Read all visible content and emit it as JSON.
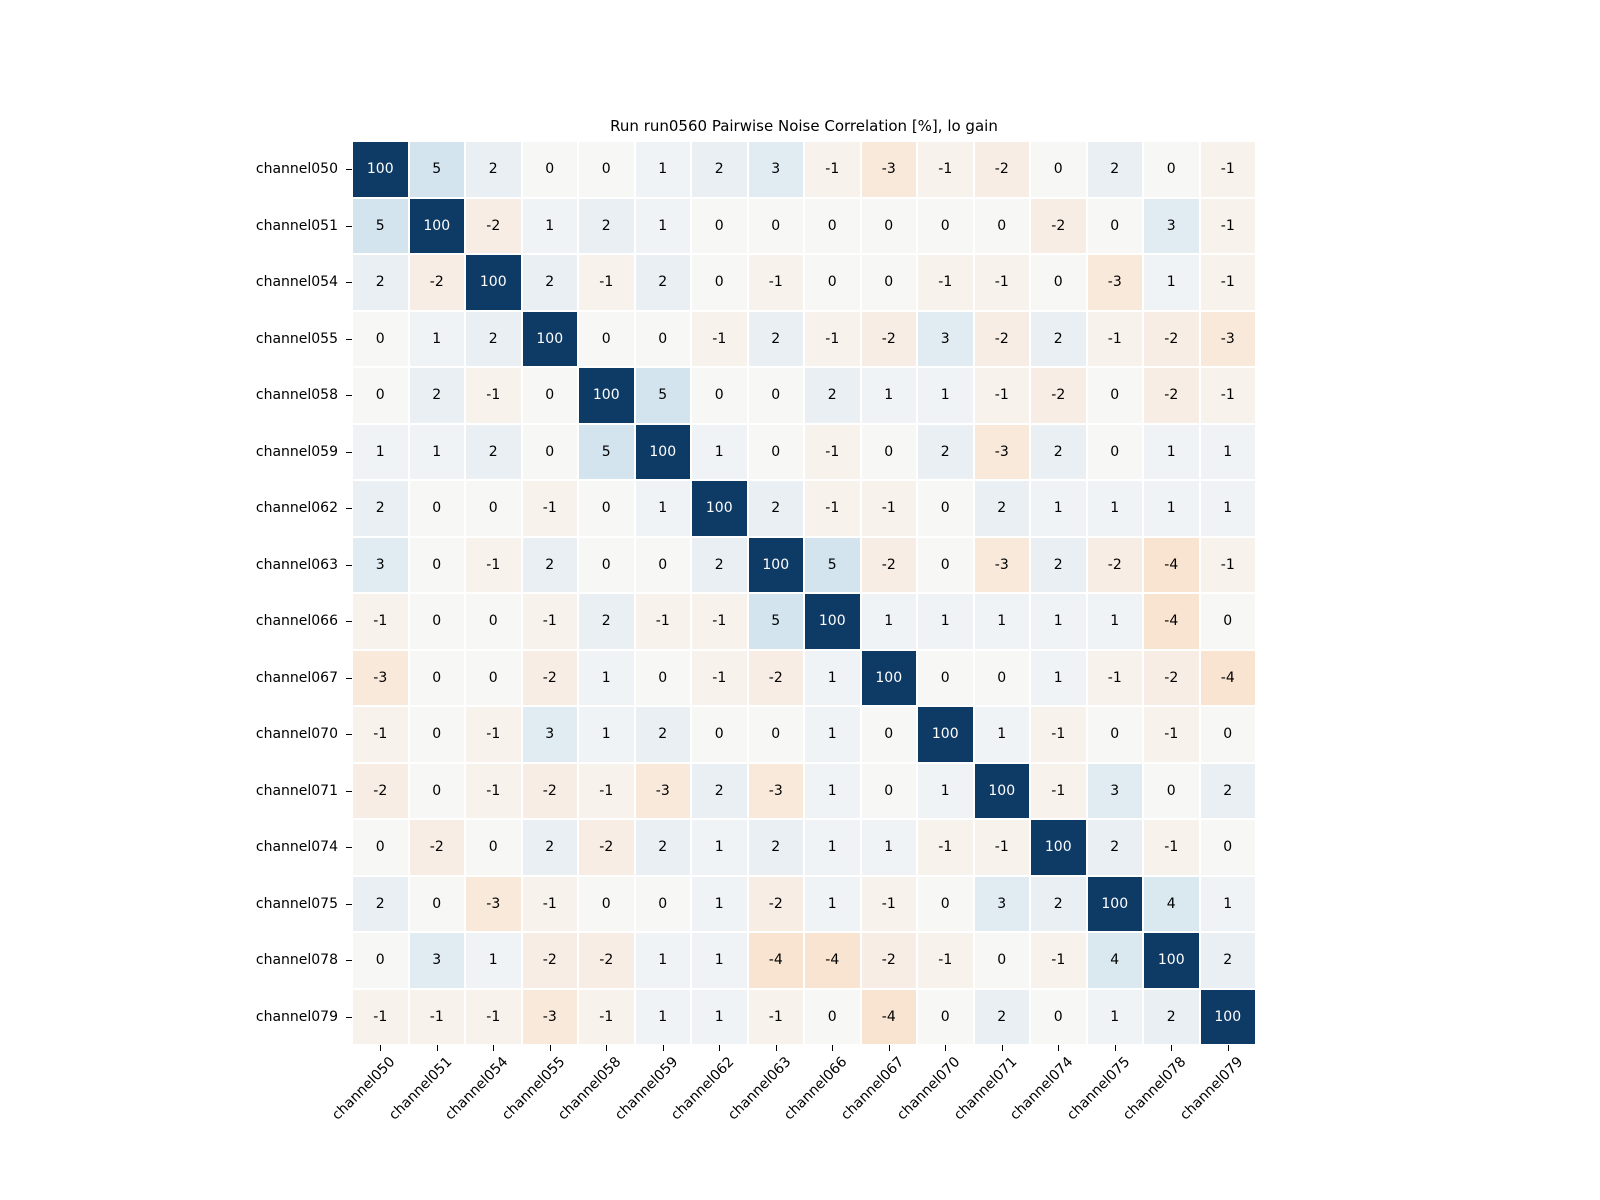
{
  "title": "Run run0560 Pairwise Noise Correlation [%], lo gain",
  "chart_data": {
    "type": "heatmap",
    "title": "Run run0560 Pairwise Noise Correlation [%], lo gain",
    "xlabel": "",
    "ylabel": "",
    "values_unit": "%",
    "legend": "none",
    "categories": [
      "channel050",
      "channel051",
      "channel054",
      "channel055",
      "channel058",
      "channel059",
      "channel062",
      "channel063",
      "channel066",
      "channel067",
      "channel070",
      "channel071",
      "channel074",
      "channel075",
      "channel078",
      "channel079"
    ],
    "matrix": [
      [
        100,
        5,
        2,
        0,
        0,
        1,
        2,
        3,
        -1,
        -3,
        -1,
        -2,
        0,
        2,
        0,
        -1
      ],
      [
        5,
        100,
        -2,
        1,
        2,
        1,
        0,
        0,
        0,
        0,
        0,
        0,
        -2,
        0,
        3,
        -1
      ],
      [
        2,
        -2,
        100,
        2,
        -1,
        2,
        0,
        -1,
        0,
        0,
        -1,
        -1,
        0,
        -3,
        1,
        -1
      ],
      [
        0,
        1,
        2,
        100,
        0,
        0,
        -1,
        2,
        -1,
        -2,
        3,
        -2,
        2,
        -1,
        -2,
        -3
      ],
      [
        0,
        2,
        -1,
        0,
        100,
        5,
        0,
        0,
        2,
        1,
        1,
        -1,
        -2,
        0,
        -2,
        -1
      ],
      [
        1,
        1,
        2,
        0,
        5,
        100,
        1,
        0,
        -1,
        0,
        2,
        -3,
        2,
        0,
        1,
        1
      ],
      [
        2,
        0,
        0,
        -1,
        0,
        1,
        100,
        2,
        -1,
        -1,
        0,
        2,
        1,
        1,
        1,
        1
      ],
      [
        3,
        0,
        -1,
        2,
        0,
        0,
        2,
        100,
        5,
        -2,
        0,
        -3,
        2,
        -2,
        -4,
        -1
      ],
      [
        -1,
        0,
        0,
        -1,
        2,
        -1,
        -1,
        5,
        100,
        1,
        1,
        1,
        1,
        1,
        -4,
        0
      ],
      [
        -3,
        0,
        0,
        -2,
        1,
        0,
        -1,
        -2,
        1,
        100,
        0,
        0,
        1,
        -1,
        -2,
        -4
      ],
      [
        -1,
        0,
        -1,
        3,
        1,
        2,
        0,
        0,
        1,
        0,
        100,
        1,
        -1,
        0,
        -1,
        0
      ],
      [
        -2,
        0,
        -1,
        -2,
        -1,
        -3,
        2,
        -3,
        1,
        0,
        1,
        100,
        -1,
        3,
        0,
        2
      ],
      [
        0,
        -2,
        0,
        2,
        -2,
        2,
        1,
        2,
        1,
        1,
        -1,
        -1,
        100,
        2,
        -1,
        0
      ],
      [
        2,
        0,
        -3,
        -1,
        0,
        0,
        1,
        -2,
        1,
        -1,
        0,
        3,
        2,
        100,
        4,
        1
      ],
      [
        0,
        3,
        1,
        -2,
        -2,
        1,
        1,
        -4,
        -4,
        -2,
        -1,
        0,
        -1,
        4,
        100,
        2
      ],
      [
        -1,
        -1,
        -1,
        -3,
        -1,
        1,
        1,
        -1,
        0,
        -4,
        0,
        2,
        0,
        1,
        2,
        100
      ]
    ],
    "colors": {
      "diagonal": "#0e3a66",
      "diagonal_text": "#ffffff",
      "zero": "#f7f7f6",
      "positive_max": "#d3e4ef",
      "negative_max": "#fadfc9",
      "cell_text": "#000000",
      "grid_line": "#ffffff",
      "background": "#ffffff"
    },
    "color_scale_note": "diverging: blue = positive correlation, orange = negative correlation, diagonal = 100"
  }
}
